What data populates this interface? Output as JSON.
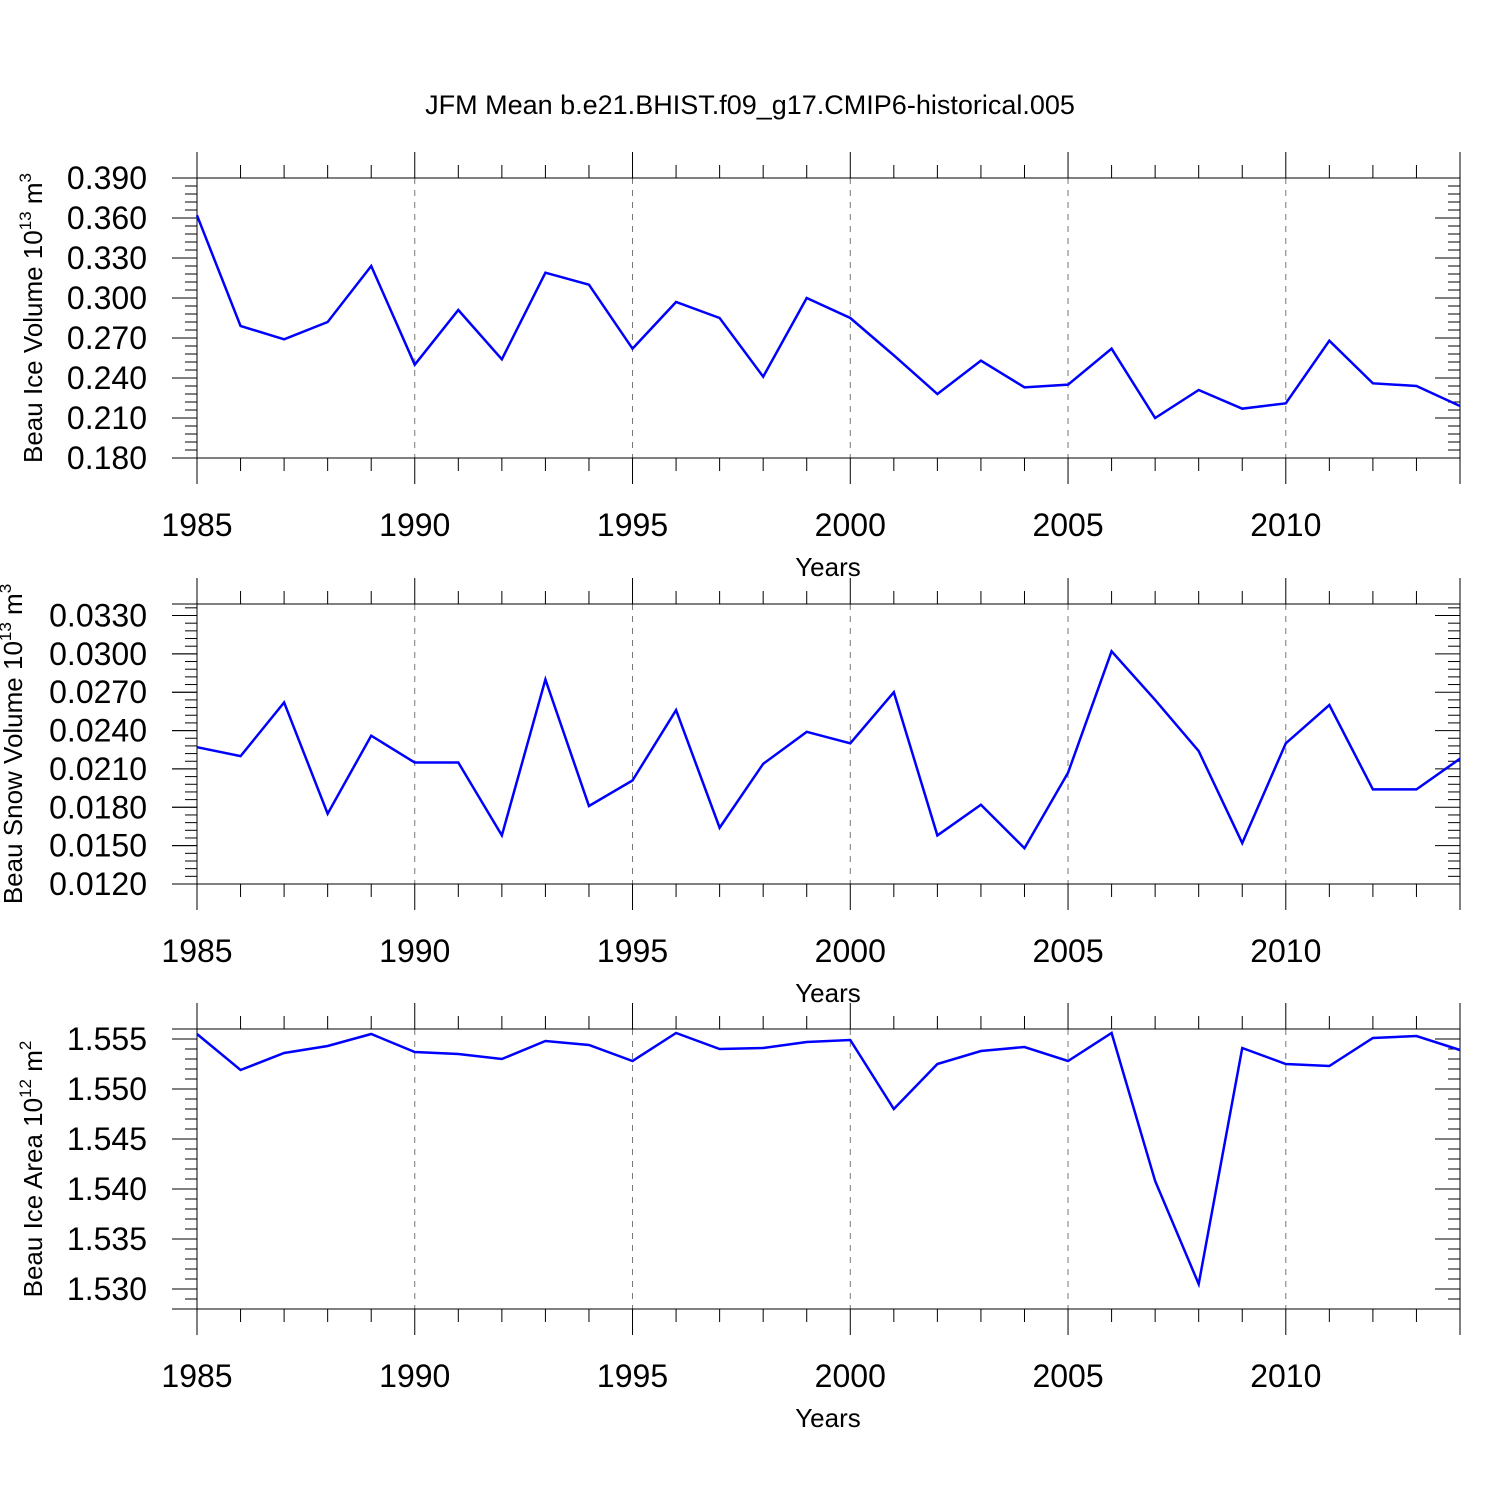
{
  "title": "JFM Mean b.e21.BHIST.f09_g17.CMIP6-historical.005",
  "line_color": "#0000ff",
  "chart_data": [
    {
      "type": "line",
      "ylabel": "Beau Ice Volume 10",
      "ylabel_exp": "13",
      "ylabel_unit": " m",
      "ylabel_unit_exp": "3",
      "xlabel": "Years",
      "xlim": [
        1985,
        2014
      ],
      "ylim": [
        0.18,
        0.39
      ],
      "xticks": [
        1985,
        1990,
        1995,
        2000,
        2005,
        2010
      ],
      "xtick_labels": [
        "1985",
        "1990",
        "1995",
        "2000",
        "2005",
        "2010"
      ],
      "yticks": [
        0.18,
        0.21,
        0.24,
        0.27,
        0.3,
        0.33,
        0.36,
        0.39
      ],
      "ytick_labels": [
        "0.180",
        "0.210",
        "0.240",
        "0.270",
        "0.300",
        "0.330",
        "0.360",
        "0.390"
      ],
      "x": [
        1985,
        1986,
        1987,
        1988,
        1989,
        1990,
        1991,
        1992,
        1993,
        1994,
        1995,
        1996,
        1997,
        1998,
        1999,
        2000,
        2001,
        2002,
        2003,
        2004,
        2005,
        2006,
        2007,
        2008,
        2009,
        2010,
        2011,
        2012,
        2013,
        2014
      ],
      "values": [
        0.362,
        0.279,
        0.269,
        0.282,
        0.324,
        0.25,
        0.291,
        0.254,
        0.319,
        0.31,
        0.262,
        0.297,
        0.285,
        0.241,
        0.3,
        0.285,
        0.257,
        0.228,
        0.253,
        0.233,
        0.235,
        0.262,
        0.21,
        0.231,
        0.217,
        0.221,
        0.268,
        0.236,
        0.234,
        0.219
      ]
    },
    {
      "type": "line",
      "ylabel": "Beau Snow Volume 10",
      "ylabel_exp": "13",
      "ylabel_unit": " m",
      "ylabel_unit_exp": "3",
      "xlabel": "Years",
      "xlim": [
        1985,
        2014
      ],
      "ylim": [
        0.012,
        0.0339
      ],
      "xticks": [
        1985,
        1990,
        1995,
        2000,
        2005,
        2010
      ],
      "xtick_labels": [
        "1985",
        "1990",
        "1995",
        "2000",
        "2005",
        "2010"
      ],
      "yticks": [
        0.012,
        0.015,
        0.018,
        0.021,
        0.024,
        0.027,
        0.03,
        0.033
      ],
      "ytick_labels": [
        "0.0120",
        "0.0150",
        "0.0180",
        "0.0210",
        "0.0240",
        "0.0270",
        "0.0300",
        "0.0330"
      ],
      "x": [
        1985,
        1986,
        1987,
        1988,
        1989,
        1990,
        1991,
        1992,
        1993,
        1994,
        1995,
        1996,
        1997,
        1998,
        1999,
        2000,
        2001,
        2002,
        2003,
        2004,
        2005,
        2006,
        2007,
        2008,
        2009,
        2010,
        2011,
        2012,
        2013,
        2014
      ],
      "values": [
        0.0227,
        0.022,
        0.0262,
        0.0175,
        0.0236,
        0.0215,
        0.0215,
        0.0158,
        0.028,
        0.0181,
        0.0201,
        0.0256,
        0.0164,
        0.0214,
        0.0239,
        0.023,
        0.027,
        0.0158,
        0.0182,
        0.0148,
        0.0207,
        0.0302,
        0.0264,
        0.0224,
        0.0152,
        0.023,
        0.026,
        0.0194,
        0.0194,
        0.0218
      ]
    },
    {
      "type": "line",
      "ylabel": "Beau Ice Area 10",
      "ylabel_exp": "12",
      "ylabel_unit": " m",
      "ylabel_unit_exp": "2",
      "xlabel": "Years",
      "xlim": [
        1985,
        2014
      ],
      "ylim": [
        1.528,
        1.556
      ],
      "xticks": [
        1985,
        1990,
        1995,
        2000,
        2005,
        2010
      ],
      "xtick_labels": [
        "1985",
        "1990",
        "1995",
        "2000",
        "2005",
        "2010"
      ],
      "yticks": [
        1.53,
        1.535,
        1.54,
        1.545,
        1.55,
        1.555
      ],
      "ytick_labels": [
        "1.530",
        "1.535",
        "1.540",
        "1.545",
        "1.550",
        "1.555"
      ],
      "x": [
        1985,
        1986,
        1987,
        1988,
        1989,
        1990,
        1991,
        1992,
        1993,
        1994,
        1995,
        1996,
        1997,
        1998,
        1999,
        2000,
        2001,
        2002,
        2003,
        2004,
        2005,
        2006,
        2007,
        2008,
        2009,
        2010,
        2011,
        2012,
        2013,
        2014
      ],
      "values": [
        1.5555,
        1.5519,
        1.5536,
        1.5543,
        1.5555,
        1.5537,
        1.5535,
        1.553,
        1.5548,
        1.5544,
        1.5528,
        1.5556,
        1.554,
        1.5541,
        1.5547,
        1.5549,
        1.548,
        1.5525,
        1.5538,
        1.5542,
        1.5528,
        1.5556,
        1.5408,
        1.5305,
        1.5541,
        1.5525,
        1.5523,
        1.5551,
        1.5553,
        1.5539
      ]
    }
  ]
}
